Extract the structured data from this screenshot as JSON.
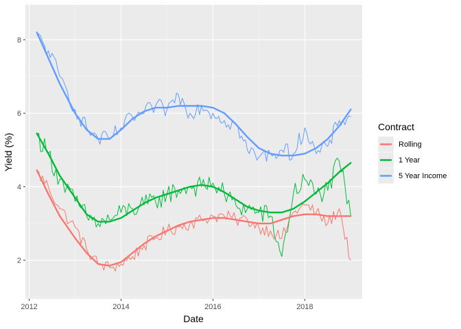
{
  "chart_data": {
    "type": "line",
    "xlabel": "Date",
    "ylabel": "Yield (%)",
    "x_ticks": [
      "2012",
      "2014",
      "2016",
      "2018"
    ],
    "y_ticks": [
      "2",
      "4",
      "6",
      "8"
    ],
    "xlim": [
      "2011-12",
      "2019-04"
    ],
    "ylim": [
      0.95,
      8.95
    ],
    "grid": true,
    "legend": {
      "title": "Contract",
      "position": "right"
    },
    "series": [
      {
        "name": "Rolling",
        "color": "#F8766D",
        "x": [
          "2012-03",
          "2012-06",
          "2012-09",
          "2013-01",
          "2013-04",
          "2013-07",
          "2013-10",
          "2014-01",
          "2014-04",
          "2014-07",
          "2014-10",
          "2015-01",
          "2015-04",
          "2015-07",
          "2015-10",
          "2016-01",
          "2016-04",
          "2016-07",
          "2016-10",
          "2017-01",
          "2017-04",
          "2017-07",
          "2017-10",
          "2018-01",
          "2018-04",
          "2018-07",
          "2018-10",
          "2019-01"
        ],
        "values": [
          4.4,
          4.0,
          3.4,
          2.9,
          2.3,
          1.9,
          1.8,
          1.9,
          2.1,
          2.4,
          2.6,
          2.8,
          2.9,
          3.0,
          3.1,
          3.2,
          3.2,
          3.1,
          3.1,
          2.9,
          2.8,
          2.6,
          3.3,
          3.5,
          3.3,
          3.0,
          3.4,
          2.0
        ],
        "smooth": [
          4.45,
          3.8,
          3.2,
          2.6,
          2.2,
          1.9,
          1.85,
          1.95,
          2.2,
          2.45,
          2.65,
          2.8,
          2.95,
          3.05,
          3.1,
          3.15,
          3.15,
          3.1,
          3.05,
          3.0,
          3.0,
          3.1,
          3.2,
          3.25,
          3.25,
          3.2,
          3.2,
          3.2
        ]
      },
      {
        "name": "1 Year",
        "color": "#00BA38",
        "x": [
          "2012-03",
          "2012-06",
          "2012-09",
          "2013-01",
          "2013-04",
          "2013-07",
          "2013-10",
          "2014-01",
          "2014-04",
          "2014-07",
          "2014-10",
          "2015-01",
          "2015-04",
          "2015-07",
          "2015-10",
          "2016-01",
          "2016-04",
          "2016-07",
          "2016-10",
          "2017-01",
          "2017-04",
          "2017-07",
          "2017-10",
          "2018-01",
          "2018-04",
          "2018-07",
          "2018-10",
          "2019-01"
        ],
        "values": [
          5.4,
          4.9,
          4.2,
          3.6,
          3.2,
          3.0,
          3.1,
          3.3,
          3.4,
          3.5,
          3.6,
          3.8,
          3.9,
          4.0,
          4.0,
          4.1,
          3.8,
          3.5,
          3.4,
          3.3,
          3.2,
          2.1,
          3.8,
          4.2,
          3.8,
          3.9,
          4.7,
          3.2
        ],
        "smooth": [
          5.45,
          4.9,
          4.3,
          3.7,
          3.25,
          3.05,
          3.05,
          3.15,
          3.35,
          3.55,
          3.7,
          3.8,
          3.9,
          4.0,
          4.05,
          4.0,
          3.85,
          3.65,
          3.45,
          3.35,
          3.3,
          3.3,
          3.4,
          3.6,
          3.85,
          4.1,
          4.4,
          4.65
        ]
      },
      {
        "name": "5 Year Income",
        "color": "#619CFF",
        "x": [
          "2012-03",
          "2012-06",
          "2012-09",
          "2013-01",
          "2013-04",
          "2013-07",
          "2013-10",
          "2014-01",
          "2014-04",
          "2014-07",
          "2014-10",
          "2015-01",
          "2015-04",
          "2015-07",
          "2015-10",
          "2016-01",
          "2016-04",
          "2016-07",
          "2016-10",
          "2017-01",
          "2017-04",
          "2017-07",
          "2017-10",
          "2018-01",
          "2018-04",
          "2018-07",
          "2018-10",
          "2019-01"
        ],
        "values": [
          8.1,
          7.7,
          7.0,
          6.1,
          5.6,
          5.3,
          5.3,
          5.6,
          5.9,
          6.0,
          6.2,
          6.1,
          6.5,
          6.0,
          6.2,
          6.0,
          5.8,
          5.7,
          5.0,
          4.8,
          4.9,
          5.0,
          4.9,
          5.6,
          4.9,
          5.1,
          5.8,
          5.9
        ],
        "smooth": [
          8.2,
          7.5,
          6.8,
          6.0,
          5.55,
          5.3,
          5.3,
          5.55,
          5.85,
          6.05,
          6.15,
          6.15,
          6.2,
          6.2,
          6.2,
          6.15,
          6.0,
          5.7,
          5.35,
          5.05,
          4.9,
          4.85,
          4.85,
          4.9,
          5.05,
          5.3,
          5.65,
          6.1
        ]
      }
    ]
  }
}
